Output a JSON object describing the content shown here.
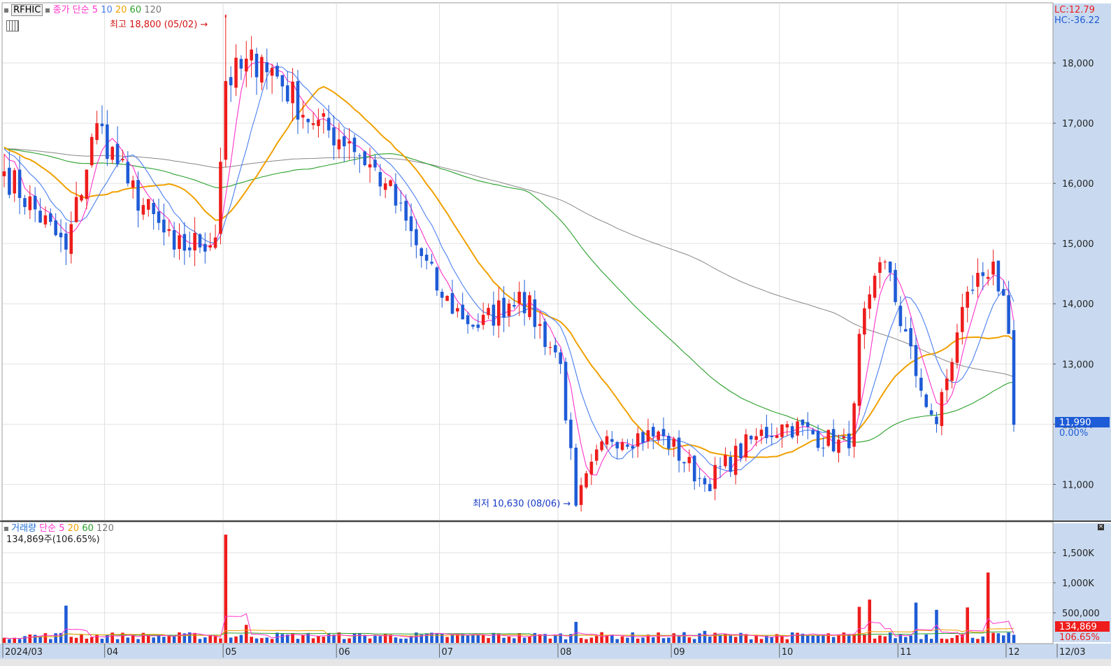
{
  "price_header": {
    "ticker": "RFHIC",
    "indicator_label": "종가 단순",
    "ma_periods": [
      "5",
      "10",
      "20",
      "60",
      "120"
    ],
    "lc": "LC:12.79",
    "hc": "HC:-36.22"
  },
  "volume_header": {
    "label": "거래량",
    "indicator_label": "단순",
    "ma_periods": [
      "5",
      "20",
      "60",
      "120"
    ],
    "current": "134,869주(106.65%)"
  },
  "annotations": {
    "high": "최고 18,800 (05/02)",
    "low": "최저 10,630 (08/06)"
  },
  "last_price": {
    "value": "11,990",
    "change": "0.00%"
  },
  "last_volume": {
    "value": "134,869",
    "ratio": "106.65%"
  },
  "colors": {
    "up": "#ee1c1c",
    "down": "#1e5bd6",
    "ma5": "#ff33cc",
    "ma10": "#4a7ff0",
    "ma20": "#f0a000",
    "ma60": "#2aa02a",
    "ma120": "#888888"
  },
  "chart_data": [
    {
      "type": "candlestick",
      "title": "RFHIC",
      "x_ticks": [
        "2024/03",
        "04",
        "05",
        "06",
        "07",
        "08",
        "09",
        "10",
        "11",
        "12",
        "12/03"
      ],
      "y_ticks": [
        "11,000",
        "12,000",
        "13,000",
        "14,000",
        "15,000",
        "16,000",
        "17,000",
        "18,000"
      ],
      "ylim": [
        10400,
        19000
      ],
      "grid": true,
      "anchors": [
        {
          "x": "2024/03/04",
          "y": 16200
        },
        {
          "x": "2024/03/20",
          "y": 14900
        },
        {
          "x": "2024/03/28",
          "y": 17000
        },
        {
          "x": "2024/04/05",
          "y": 16000
        },
        {
          "x": "2024/04/18",
          "y": 14900
        },
        {
          "x": "2024/04/30",
          "y": 15100
        },
        {
          "x": "2024/05/02",
          "y": 17700
        },
        {
          "x": "2024/05/13",
          "y": 18100
        },
        {
          "x": "2024/05/27",
          "y": 17000
        },
        {
          "x": "2024/06/05",
          "y": 16700
        },
        {
          "x": "2024/06/14",
          "y": 16000
        },
        {
          "x": "2024/07/01",
          "y": 14100
        },
        {
          "x": "2024/07/10",
          "y": 13600
        },
        {
          "x": "2024/07/22",
          "y": 14200
        },
        {
          "x": "2024/08/01",
          "y": 13000
        },
        {
          "x": "2024/08/06",
          "y": 10650
        },
        {
          "x": "2024/08/14",
          "y": 11800
        },
        {
          "x": "2024/08/29",
          "y": 11800
        },
        {
          "x": "2024/09/10",
          "y": 11000
        },
        {
          "x": "2024/09/24",
          "y": 11800
        },
        {
          "x": "2024/10/02",
          "y": 12000
        },
        {
          "x": "2024/10/18",
          "y": 11600
        },
        {
          "x": "2024/10/22",
          "y": 13500
        },
        {
          "x": "2024/10/29",
          "y": 14700
        },
        {
          "x": "2024/11/06",
          "y": 12800
        },
        {
          "x": "2024/11/12",
          "y": 12000
        },
        {
          "x": "2024/11/20",
          "y": 14200
        },
        {
          "x": "2024/11/27",
          "y": 14700
        },
        {
          "x": "2024/12/02",
          "y": 13500
        },
        {
          "x": "2024/12/03",
          "y": 11990
        }
      ],
      "high": {
        "date": "05/02",
        "value": 18800
      },
      "low": {
        "date": "08/06",
        "value": 10630
      },
      "series": [
        {
          "name": "5",
          "line": "ma5"
        },
        {
          "name": "10",
          "line": "ma10"
        },
        {
          "name": "20",
          "line": "ma20"
        },
        {
          "name": "60",
          "line": "ma60"
        },
        {
          "name": "120",
          "line": "ma120"
        }
      ]
    },
    {
      "type": "bar",
      "title": "거래량",
      "y_ticks": [
        "500,000",
        "1,000K",
        "1,500K"
      ],
      "ylim": [
        0,
        2000000
      ],
      "spikes": [
        {
          "x": "2024/03/20",
          "y": 620000
        },
        {
          "x": "2024/05/02",
          "y": 1800000
        },
        {
          "x": "2024/05/08",
          "y": 300000
        },
        {
          "x": "2024/08/06",
          "y": 350000
        },
        {
          "x": "2024/09/10",
          "y": 200000
        },
        {
          "x": "2024/10/22",
          "y": 600000
        },
        {
          "x": "2024/10/24",
          "y": 720000
        },
        {
          "x": "2024/11/06",
          "y": 670000
        },
        {
          "x": "2024/11/12",
          "y": 550000
        },
        {
          "x": "2024/11/20",
          "y": 590000
        },
        {
          "x": "2024/11/26",
          "y": 1170000
        }
      ],
      "last": 134869
    }
  ]
}
